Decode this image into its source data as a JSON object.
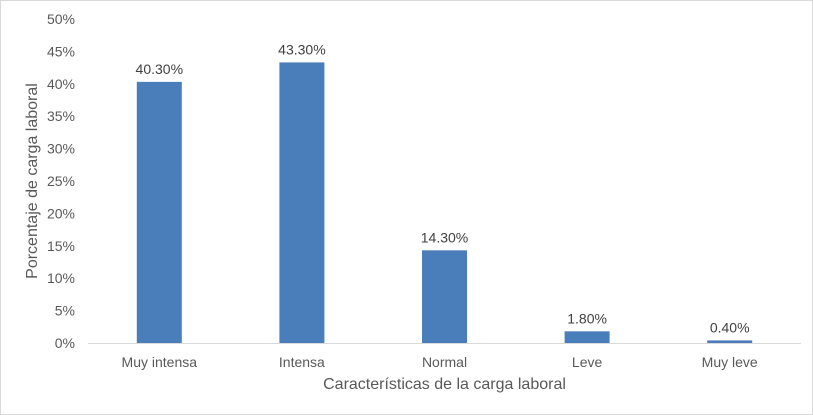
{
  "chart_data": {
    "type": "bar",
    "categories": [
      "Muy intensa",
      "Intensa",
      "Normal",
      "Leve",
      "Muy leve"
    ],
    "values": [
      40.3,
      43.3,
      14.3,
      1.8,
      0.4
    ],
    "data_labels": [
      "40.30%",
      "43.30%",
      "14.30%",
      "1.80%",
      "0.40%"
    ],
    "xlabel": "Características de la carga laboral",
    "ylabel": "Porcentaje de carga laboral",
    "ylim": [
      0,
      50
    ],
    "yticks": [
      "0%",
      "5%",
      "10%",
      "15%",
      "20%",
      "25%",
      "30%",
      "35%",
      "40%",
      "45%",
      "50%"
    ],
    "grid": false,
    "legend": "none",
    "bar_color": "#4a7ebb"
  }
}
